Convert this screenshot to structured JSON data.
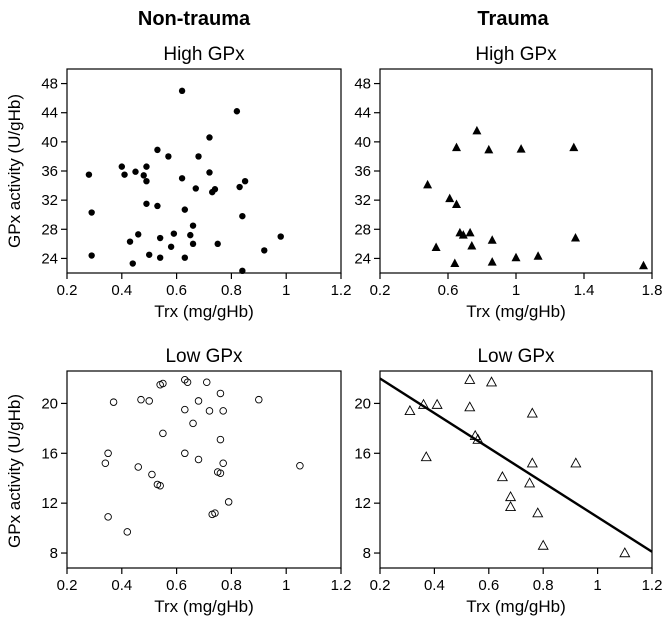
{
  "columns": [
    "Non-trauma",
    "Trauma"
  ],
  "chart_data": [
    {
      "type": "scatter",
      "group": "Non-trauma",
      "title": "High GPx",
      "xlabel": "Trx (mg/gHb)",
      "ylabel": "GPx activity (U/gHb)",
      "xlim": [
        0.2,
        1.2
      ],
      "ylim": [
        22,
        50
      ],
      "xticks": [
        0.2,
        0.4,
        0.6,
        0.8,
        1,
        1.2
      ],
      "yticks": [
        24,
        28,
        32,
        36,
        40,
        44,
        48
      ],
      "xtick_labels": [
        "0.2",
        "0.4",
        "0.6",
        "0.8",
        "1",
        "1.2"
      ],
      "ytick_labels": [
        "24",
        "28",
        "32",
        "36",
        "40",
        "44",
        "48"
      ],
      "marker": "filled-circle",
      "points": [
        [
          0.28,
          35.5
        ],
        [
          0.29,
          30.3
        ],
        [
          0.29,
          24.4
        ],
        [
          0.4,
          36.6
        ],
        [
          0.41,
          35.5
        ],
        [
          0.43,
          26.3
        ],
        [
          0.44,
          23.3
        ],
        [
          0.45,
          35.9
        ],
        [
          0.46,
          27.3
        ],
        [
          0.48,
          35.4
        ],
        [
          0.49,
          36.6
        ],
        [
          0.49,
          34.6
        ],
        [
          0.49,
          31.5
        ],
        [
          0.5,
          24.5
        ],
        [
          0.53,
          38.9
        ],
        [
          0.53,
          31.2
        ],
        [
          0.54,
          26.8
        ],
        [
          0.54,
          24.1
        ],
        [
          0.57,
          38.0
        ],
        [
          0.58,
          25.6
        ],
        [
          0.59,
          27.4
        ],
        [
          0.62,
          47.0
        ],
        [
          0.62,
          35.0
        ],
        [
          0.63,
          30.7
        ],
        [
          0.63,
          24.1
        ],
        [
          0.65,
          27.2
        ],
        [
          0.66,
          26.0
        ],
        [
          0.66,
          28.5
        ],
        [
          0.67,
          33.6
        ],
        [
          0.68,
          38.0
        ],
        [
          0.72,
          40.6
        ],
        [
          0.72,
          35.8
        ],
        [
          0.73,
          33.1
        ],
        [
          0.74,
          33.5
        ],
        [
          0.75,
          26.0
        ],
        [
          0.82,
          44.2
        ],
        [
          0.83,
          33.8
        ],
        [
          0.84,
          29.8
        ],
        [
          0.84,
          22.3
        ],
        [
          0.85,
          34.6
        ],
        [
          0.92,
          25.1
        ],
        [
          0.98,
          27.0
        ]
      ]
    },
    {
      "type": "scatter",
      "group": "Trauma",
      "title": "High GPx",
      "xlabel": "Trx (mg/gHb)",
      "ylabel": "",
      "xlim": [
        0.2,
        1.8
      ],
      "ylim": [
        22,
        50
      ],
      "xticks": [
        0.2,
        0.6,
        1,
        1.4,
        1.8
      ],
      "yticks": [
        24,
        28,
        32,
        36,
        40,
        44,
        48
      ],
      "xtick_labels": [
        "0.2",
        "0.6",
        "1",
        "1.4",
        "1.8"
      ],
      "ytick_labels": [
        "24",
        "28",
        "32",
        "36",
        "40",
        "44",
        "48"
      ],
      "marker": "filled-triangle",
      "points": [
        [
          0.48,
          34.1
        ],
        [
          0.53,
          25.5
        ],
        [
          0.61,
          32.2
        ],
        [
          0.64,
          23.3
        ],
        [
          0.65,
          31.4
        ],
        [
          0.65,
          39.2
        ],
        [
          0.67,
          27.5
        ],
        [
          0.69,
          27.2
        ],
        [
          0.73,
          27.5
        ],
        [
          0.74,
          25.7
        ],
        [
          0.77,
          41.5
        ],
        [
          0.84,
          38.9
        ],
        [
          0.86,
          26.5
        ],
        [
          0.86,
          23.5
        ],
        [
          1.0,
          24.1
        ],
        [
          1.03,
          39.0
        ],
        [
          1.13,
          24.3
        ],
        [
          1.34,
          39.2
        ],
        [
          1.35,
          26.8
        ],
        [
          1.75,
          23.0
        ]
      ]
    },
    {
      "type": "scatter",
      "group": "Non-trauma",
      "title": "Low GPx",
      "xlabel": "Trx (mg/gHb)",
      "ylabel": "GPx activity (U/gHb)",
      "xlim": [
        0.2,
        1.2
      ],
      "ylim": [
        6.8,
        22.6
      ],
      "xticks": [
        0.2,
        0.4,
        0.6,
        0.8,
        1,
        1.2
      ],
      "yticks": [
        8,
        12,
        16,
        20
      ],
      "xtick_labels": [
        "0.2",
        "0.4",
        "0.6",
        "0.8",
        "1",
        "1.2"
      ],
      "ytick_labels": [
        "8",
        "12",
        "16",
        "20"
      ],
      "marker": "open-circle",
      "points": [
        [
          0.35,
          16.0
        ],
        [
          0.34,
          15.2
        ],
        [
          0.35,
          10.9
        ],
        [
          0.37,
          20.1
        ],
        [
          0.42,
          9.7
        ],
        [
          0.46,
          14.9
        ],
        [
          0.47,
          20.3
        ],
        [
          0.5,
          20.2
        ],
        [
          0.51,
          14.3
        ],
        [
          0.53,
          13.5
        ],
        [
          0.54,
          21.5
        ],
        [
          0.54,
          13.4
        ],
        [
          0.55,
          21.6
        ],
        [
          0.55,
          17.6
        ],
        [
          0.63,
          21.9
        ],
        [
          0.63,
          19.5
        ],
        [
          0.63,
          16.0
        ],
        [
          0.64,
          21.7
        ],
        [
          0.66,
          18.4
        ],
        [
          0.68,
          20.2
        ],
        [
          0.68,
          15.5
        ],
        [
          0.71,
          21.7
        ],
        [
          0.72,
          19.4
        ],
        [
          0.73,
          11.1
        ],
        [
          0.74,
          11.2
        ],
        [
          0.75,
          14.5
        ],
        [
          0.76,
          14.4
        ],
        [
          0.76,
          17.1
        ],
        [
          0.76,
          20.8
        ],
        [
          0.77,
          15.2
        ],
        [
          0.77,
          19.4
        ],
        [
          0.79,
          12.1
        ],
        [
          0.9,
          20.3
        ],
        [
          1.05,
          15.0
        ]
      ]
    },
    {
      "type": "scatter",
      "group": "Trauma",
      "title": "Low GPx",
      "xlabel": "Trx (mg/gHb)",
      "ylabel": "",
      "xlim": [
        0.2,
        1.2
      ],
      "ylim": [
        6.8,
        22.6
      ],
      "xticks": [
        0.2,
        0.4,
        0.6,
        0.8,
        1,
        1.2
      ],
      "yticks": [
        8,
        12,
        16,
        20
      ],
      "xtick_labels": [
        "0.2",
        "0.4",
        "0.6",
        "0.8",
        "1",
        "1.2"
      ],
      "ytick_labels": [
        "8",
        "12",
        "16",
        "20"
      ],
      "marker": "open-triangle",
      "points": [
        [
          0.31,
          19.4
        ],
        [
          0.36,
          19.9
        ],
        [
          0.37,
          15.7
        ],
        [
          0.41,
          19.9
        ],
        [
          0.53,
          19.7
        ],
        [
          0.53,
          21.9
        ],
        [
          0.55,
          17.4
        ],
        [
          0.56,
          17.1
        ],
        [
          0.61,
          21.7
        ],
        [
          0.65,
          14.1
        ],
        [
          0.68,
          11.7
        ],
        [
          0.68,
          12.5
        ],
        [
          0.75,
          13.6
        ],
        [
          0.76,
          19.2
        ],
        [
          0.76,
          15.2
        ],
        [
          0.78,
          11.2
        ],
        [
          0.8,
          8.6
        ],
        [
          0.92,
          15.2
        ],
        [
          1.1,
          8.0
        ]
      ],
      "regression_line": [
        [
          0.2,
          22.0
        ],
        [
          1.2,
          8.1
        ]
      ]
    }
  ]
}
